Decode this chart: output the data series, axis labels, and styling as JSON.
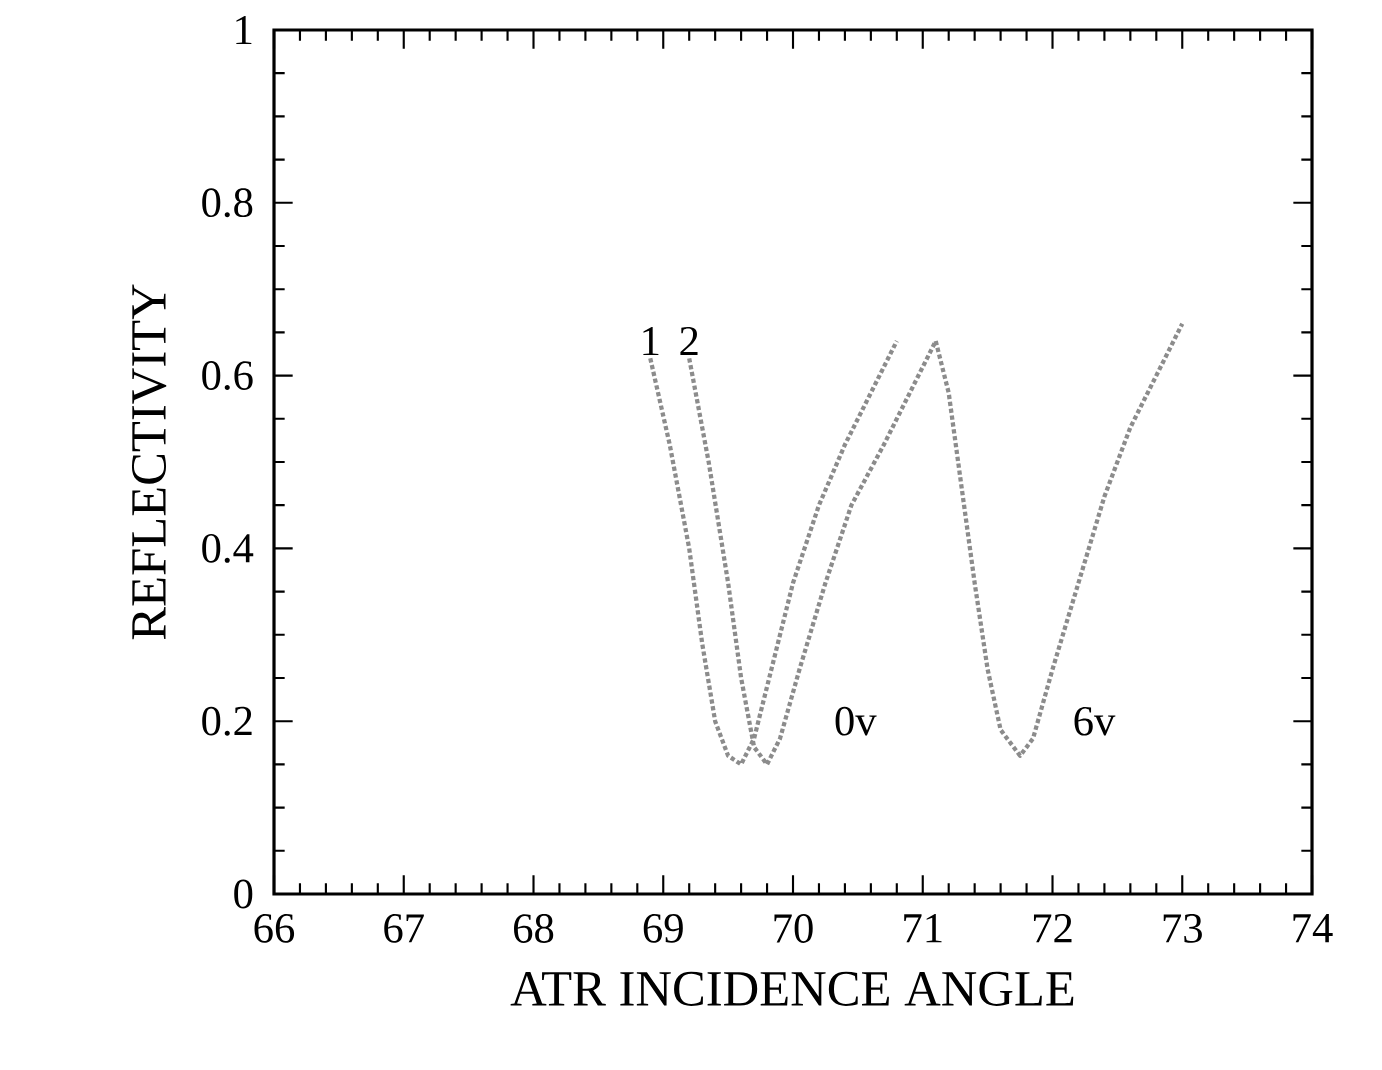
{
  "chart_data": {
    "type": "line",
    "xlabel": "ATR INCIDENCE ANGLE",
    "ylabel": "REFLECTIVITY",
    "xlim": [
      66,
      74
    ],
    "ylim": [
      0,
      1
    ],
    "xticks": [
      66,
      67,
      68,
      69,
      70,
      71,
      72,
      73,
      74
    ],
    "yticks": [
      0,
      0.2,
      0.4,
      0.6,
      0.8,
      1
    ],
    "annotations": [
      "0v",
      "6v"
    ],
    "line_style": "dotted",
    "series": [
      {
        "name": "1",
        "color": "#8c8c8c",
        "x": [
          68.9,
          69.05,
          69.2,
          69.3,
          69.4,
          69.5,
          69.6,
          69.7,
          69.85,
          70.0,
          70.2,
          70.4,
          70.6,
          70.8
        ],
        "values": [
          0.62,
          0.52,
          0.4,
          0.29,
          0.2,
          0.16,
          0.15,
          0.18,
          0.27,
          0.36,
          0.45,
          0.52,
          0.58,
          0.64
        ]
      },
      {
        "name": "2",
        "color": "#8c8c8c",
        "x": [
          69.2,
          69.35,
          69.5,
          69.6,
          69.7,
          69.8,
          69.9,
          70.05,
          70.25,
          70.45,
          70.7,
          70.9,
          71.1
        ],
        "values": [
          0.62,
          0.5,
          0.36,
          0.25,
          0.17,
          0.15,
          0.18,
          0.26,
          0.36,
          0.45,
          0.52,
          0.58,
          0.64
        ]
      },
      {
        "color": "#8c8c8c",
        "x": [
          71.1,
          71.2,
          71.3,
          71.4,
          71.5,
          71.6,
          71.75,
          71.85,
          72.0,
          72.2,
          72.4,
          72.6,
          72.8,
          73.0
        ],
        "values": [
          0.64,
          0.58,
          0.47,
          0.36,
          0.26,
          0.19,
          0.16,
          0.18,
          0.26,
          0.36,
          0.46,
          0.54,
          0.6,
          0.66
        ]
      }
    ]
  }
}
